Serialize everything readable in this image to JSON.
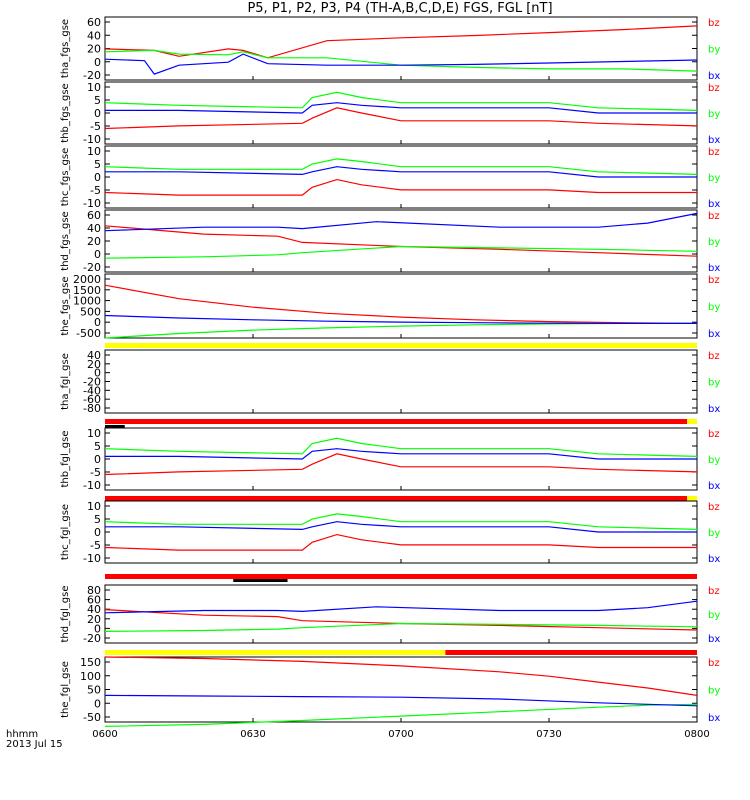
{
  "title": "P5, P1, P2, P3, P4 (TH-A,B,C,D,E) FGS, FGL [nT]",
  "footer": {
    "line1": "hhmm",
    "line2": "2013 Jul 15"
  },
  "colors": {
    "bx": "#0000ff",
    "by": "#00ff00",
    "bz": "#ff0000",
    "bar_yellow": "#ffff00",
    "bar_red": "#ff0000",
    "bar_black": "#000000"
  },
  "chart_data": {
    "type": "line",
    "x_ticks": [
      "0600",
      "0630",
      "0700",
      "0730",
      "0800"
    ],
    "x_range": [
      "06:00",
      "08:00"
    ],
    "legend_labels": [
      "bz",
      "by",
      "bx"
    ],
    "panels": [
      {
        "ylabel": "tha_fgs_gse",
        "yticks": [
          "60",
          "40",
          "20",
          "0",
          "-20"
        ],
        "ylim": [
          -20,
          65
        ],
        "series": [
          {
            "name": "bz",
            "x": [
              0,
              10,
              15,
              25,
              28,
              33,
              45,
              60,
              75,
              90,
              105,
              120
            ],
            "y": [
              22,
              20,
              12,
              22,
              20,
              10,
              33,
              37,
              40,
              44,
              48,
              53
            ]
          },
          {
            "name": "by",
            "x": [
              0,
              10,
              15,
              25,
              28,
              33,
              45,
              60,
              75,
              90,
              105,
              120
            ],
            "y": [
              18,
              20,
              15,
              14,
              18,
              10,
              10,
              0,
              -3,
              -5,
              -5,
              -8
            ]
          },
          {
            "name": "bx",
            "x": [
              0,
              8,
              10,
              15,
              25,
              28,
              33,
              45,
              60,
              75,
              90,
              105,
              120
            ],
            "y": [
              8,
              6,
              -12,
              0,
              4,
              15,
              2,
              0,
              0,
              1,
              3,
              5,
              7
            ]
          }
        ]
      },
      {
        "ylabel": "thb_fgs_gse",
        "yticks": [
          "10",
          "5",
          "0",
          "-5",
          "-10"
        ],
        "ylim": [
          -12,
          12
        ],
        "series": [
          {
            "name": "bz",
            "x": [
              0,
              15,
              40,
              42,
              47,
              52,
              60,
              90,
              100,
              120
            ],
            "y": [
              -6,
              -5,
              -4,
              -2,
              2,
              0,
              -3,
              -3,
              -4,
              -5
            ]
          },
          {
            "name": "by",
            "x": [
              0,
              15,
              40,
              42,
              47,
              52,
              60,
              90,
              100,
              120
            ],
            "y": [
              4,
              3,
              2,
              6,
              8,
              6,
              4,
              4,
              2,
              1
            ]
          },
          {
            "name": "bx",
            "x": [
              0,
              15,
              40,
              42,
              47,
              52,
              60,
              90,
              100,
              120
            ],
            "y": [
              1,
              1,
              0,
              3,
              4,
              3,
              2,
              2,
              0,
              0
            ]
          }
        ]
      },
      {
        "ylabel": "thc_fgs_gse",
        "yticks": [
          "10",
          "5",
          "0",
          "-5",
          "-10"
        ],
        "ylim": [
          -12,
          12
        ],
        "series": [
          {
            "name": "bz",
            "x": [
              0,
              15,
              40,
              42,
              47,
              52,
              60,
              90,
              100,
              120
            ],
            "y": [
              -6,
              -7,
              -7,
              -4,
              -1,
              -3,
              -5,
              -5,
              -6,
              -6
            ]
          },
          {
            "name": "by",
            "x": [
              0,
              15,
              40,
              42,
              47,
              52,
              60,
              90,
              100,
              120
            ],
            "y": [
              4,
              3,
              3,
              5,
              7,
              6,
              4,
              4,
              2,
              1
            ]
          },
          {
            "name": "bx",
            "x": [
              0,
              15,
              40,
              42,
              47,
              52,
              60,
              90,
              100,
              120
            ],
            "y": [
              2,
              2,
              1,
              2,
              4,
              3,
              2,
              2,
              0,
              0
            ]
          }
        ]
      },
      {
        "ylabel": "thd_fgs_gse",
        "yticks": [
          "60",
          "40",
          "20",
          "0",
          "-20"
        ],
        "ylim": [
          -25,
          65
        ],
        "series": [
          {
            "name": "bz",
            "x": [
              0,
              20,
              35,
              40,
              60,
              80,
              100,
              120
            ],
            "y": [
              42,
              30,
              27,
              18,
              12,
              8,
              3,
              -2
            ]
          },
          {
            "name": "by",
            "x": [
              0,
              20,
              35,
              40,
              60,
              80,
              100,
              120
            ],
            "y": [
              -5,
              -3,
              0,
              3,
              12,
              10,
              8,
              5
            ]
          },
          {
            "name": "bx",
            "x": [
              0,
              20,
              35,
              40,
              55,
              80,
              100,
              110,
              120
            ],
            "y": [
              35,
              40,
              40,
              38,
              48,
              40,
              40,
              46,
              60
            ]
          }
        ]
      },
      {
        "ylabel": "the_fgs_gse",
        "yticks": [
          "2000",
          "1500",
          "1000",
          "500",
          "0",
          "-500"
        ],
        "ylim": [
          -650,
          2200
        ],
        "bars": [
          {
            "color": "bar_yellow",
            "from": 0,
            "to": 120
          }
        ],
        "series": [
          {
            "name": "bz",
            "x": [
              0,
              15,
              30,
              45,
              60,
              75,
              90,
              105,
              120
            ],
            "y": [
              1700,
              1100,
              720,
              450,
              280,
              160,
              80,
              30,
              0
            ]
          },
          {
            "name": "by",
            "x": [
              0,
              15,
              30,
              45,
              60,
              75,
              90,
              105,
              120
            ],
            "y": [
              -650,
              -450,
              -300,
              -200,
              -120,
              -60,
              -20,
              0,
              0
            ]
          },
          {
            "name": "bx",
            "x": [
              0,
              15,
              30,
              45,
              60,
              75,
              90,
              105,
              120
            ],
            "y": [
              350,
              240,
              160,
              100,
              60,
              30,
              10,
              0,
              0
            ]
          }
        ]
      },
      {
        "ylabel": "tha_fgl_gse",
        "yticks": [
          "40",
          "20",
          "0",
          "-20",
          "-40",
          "-60",
          "-80"
        ],
        "ylim": [
          -90,
          50
        ],
        "bars": [
          {
            "color": "bar_red",
            "from": 0,
            "to": 118
          },
          {
            "color": "bar_yellow",
            "from": 118,
            "to": 120
          },
          {
            "color": "bar_black",
            "from": 0,
            "to": 4,
            "row": "below"
          }
        ],
        "series": []
      },
      {
        "ylabel": "thb_fgl_gse",
        "yticks": [
          "10",
          "5",
          "0",
          "-5",
          "-10"
        ],
        "ylim": [
          -12,
          12
        ],
        "bars": [
          {
            "color": "bar_red",
            "from": 0,
            "to": 118
          },
          {
            "color": "bar_yellow",
            "from": 118,
            "to": 120
          }
        ],
        "series": [
          {
            "name": "bz",
            "x": [
              0,
              15,
              40,
              42,
              47,
              52,
              60,
              90,
              100,
              120
            ],
            "y": [
              -6,
              -5,
              -4,
              -2,
              2,
              0,
              -3,
              -3,
              -4,
              -5
            ]
          },
          {
            "name": "by",
            "x": [
              0,
              15,
              40,
              42,
              47,
              52,
              60,
              90,
              100,
              120
            ],
            "y": [
              4,
              3,
              2,
              6,
              8,
              6,
              4,
              4,
              2,
              1
            ]
          },
          {
            "name": "bx",
            "x": [
              0,
              15,
              40,
              42,
              47,
              52,
              60,
              90,
              100,
              120
            ],
            "y": [
              1,
              1,
              0,
              3,
              4,
              3,
              2,
              2,
              0,
              0
            ]
          }
        ]
      },
      {
        "ylabel": "thc_fgl_gse",
        "yticks": [
          "10",
          "5",
          "0",
          "-5",
          "-10"
        ],
        "ylim": [
          -12,
          12
        ],
        "bars": [
          {
            "color": "bar_red",
            "from": 0,
            "to": 120
          }
        ],
        "series": [
          {
            "name": "bz",
            "x": [
              0,
              15,
              40,
              42,
              47,
              52,
              60,
              90,
              100,
              120
            ],
            "y": [
              -6,
              -7,
              -7,
              -4,
              -1,
              -3,
              -5,
              -5,
              -6,
              -6
            ]
          },
          {
            "name": "by",
            "x": [
              0,
              15,
              40,
              42,
              47,
              52,
              60,
              90,
              100,
              120
            ],
            "y": [
              4,
              3,
              3,
              5,
              7,
              6,
              4,
              4,
              2,
              1
            ]
          },
          {
            "name": "bx",
            "x": [
              0,
              15,
              40,
              42,
              47,
              52,
              60,
              90,
              100,
              120
            ],
            "y": [
              2,
              2,
              1,
              2,
              4,
              3,
              2,
              2,
              0,
              0
            ]
          }
        ]
      },
      {
        "ylabel": "thd_fgl_gse",
        "yticks": [
          "80",
          "60",
          "40",
          "20",
          "0",
          "-20"
        ],
        "ylim": [
          -30,
          95
        ],
        "bars": [
          {
            "color": "bar_yellow",
            "from": 0,
            "to": 69
          },
          {
            "color": "bar_red",
            "from": 69,
            "to": 120
          },
          {
            "color": "bar_black",
            "from": 26,
            "to": 37,
            "row": "above"
          }
        ],
        "series": [
          {
            "name": "bz",
            "x": [
              0,
              20,
              35,
              40,
              60,
              80,
              100,
              120
            ],
            "y": [
              42,
              30,
              27,
              18,
              12,
              8,
              3,
              -2
            ]
          },
          {
            "name": "by",
            "x": [
              0,
              20,
              35,
              40,
              60,
              80,
              100,
              120
            ],
            "y": [
              -5,
              -3,
              0,
              3,
              12,
              10,
              8,
              5
            ]
          },
          {
            "name": "bx",
            "x": [
              0,
              20,
              35,
              40,
              55,
              80,
              100,
              110,
              120
            ],
            "y": [
              35,
              40,
              40,
              38,
              48,
              40,
              40,
              46,
              60
            ]
          }
        ]
      },
      {
        "ylabel": "the_fgl_gse",
        "yticks": [
          "150",
          "100",
          "50",
          "0",
          "-50"
        ],
        "ylim": [
          -60,
          160
        ],
        "series": [
          {
            "name": "bz",
            "x": [
              0,
              20,
              40,
              60,
              80,
              90,
              100,
              110,
              120
            ],
            "y": [
              160,
              155,
              145,
              130,
              110,
              95,
              75,
              55,
              30
            ]
          },
          {
            "name": "by",
            "x": [
              0,
              20,
              40,
              60,
              80,
              100,
              110,
              120
            ],
            "y": [
              -75,
              -68,
              -55,
              -40,
              -25,
              -10,
              -3,
              0
            ]
          },
          {
            "name": "bx",
            "x": [
              0,
              20,
              40,
              60,
              80,
              100,
              110,
              120
            ],
            "y": [
              30,
              28,
              26,
              24,
              18,
              5,
              0,
              -5
            ]
          }
        ]
      }
    ]
  }
}
